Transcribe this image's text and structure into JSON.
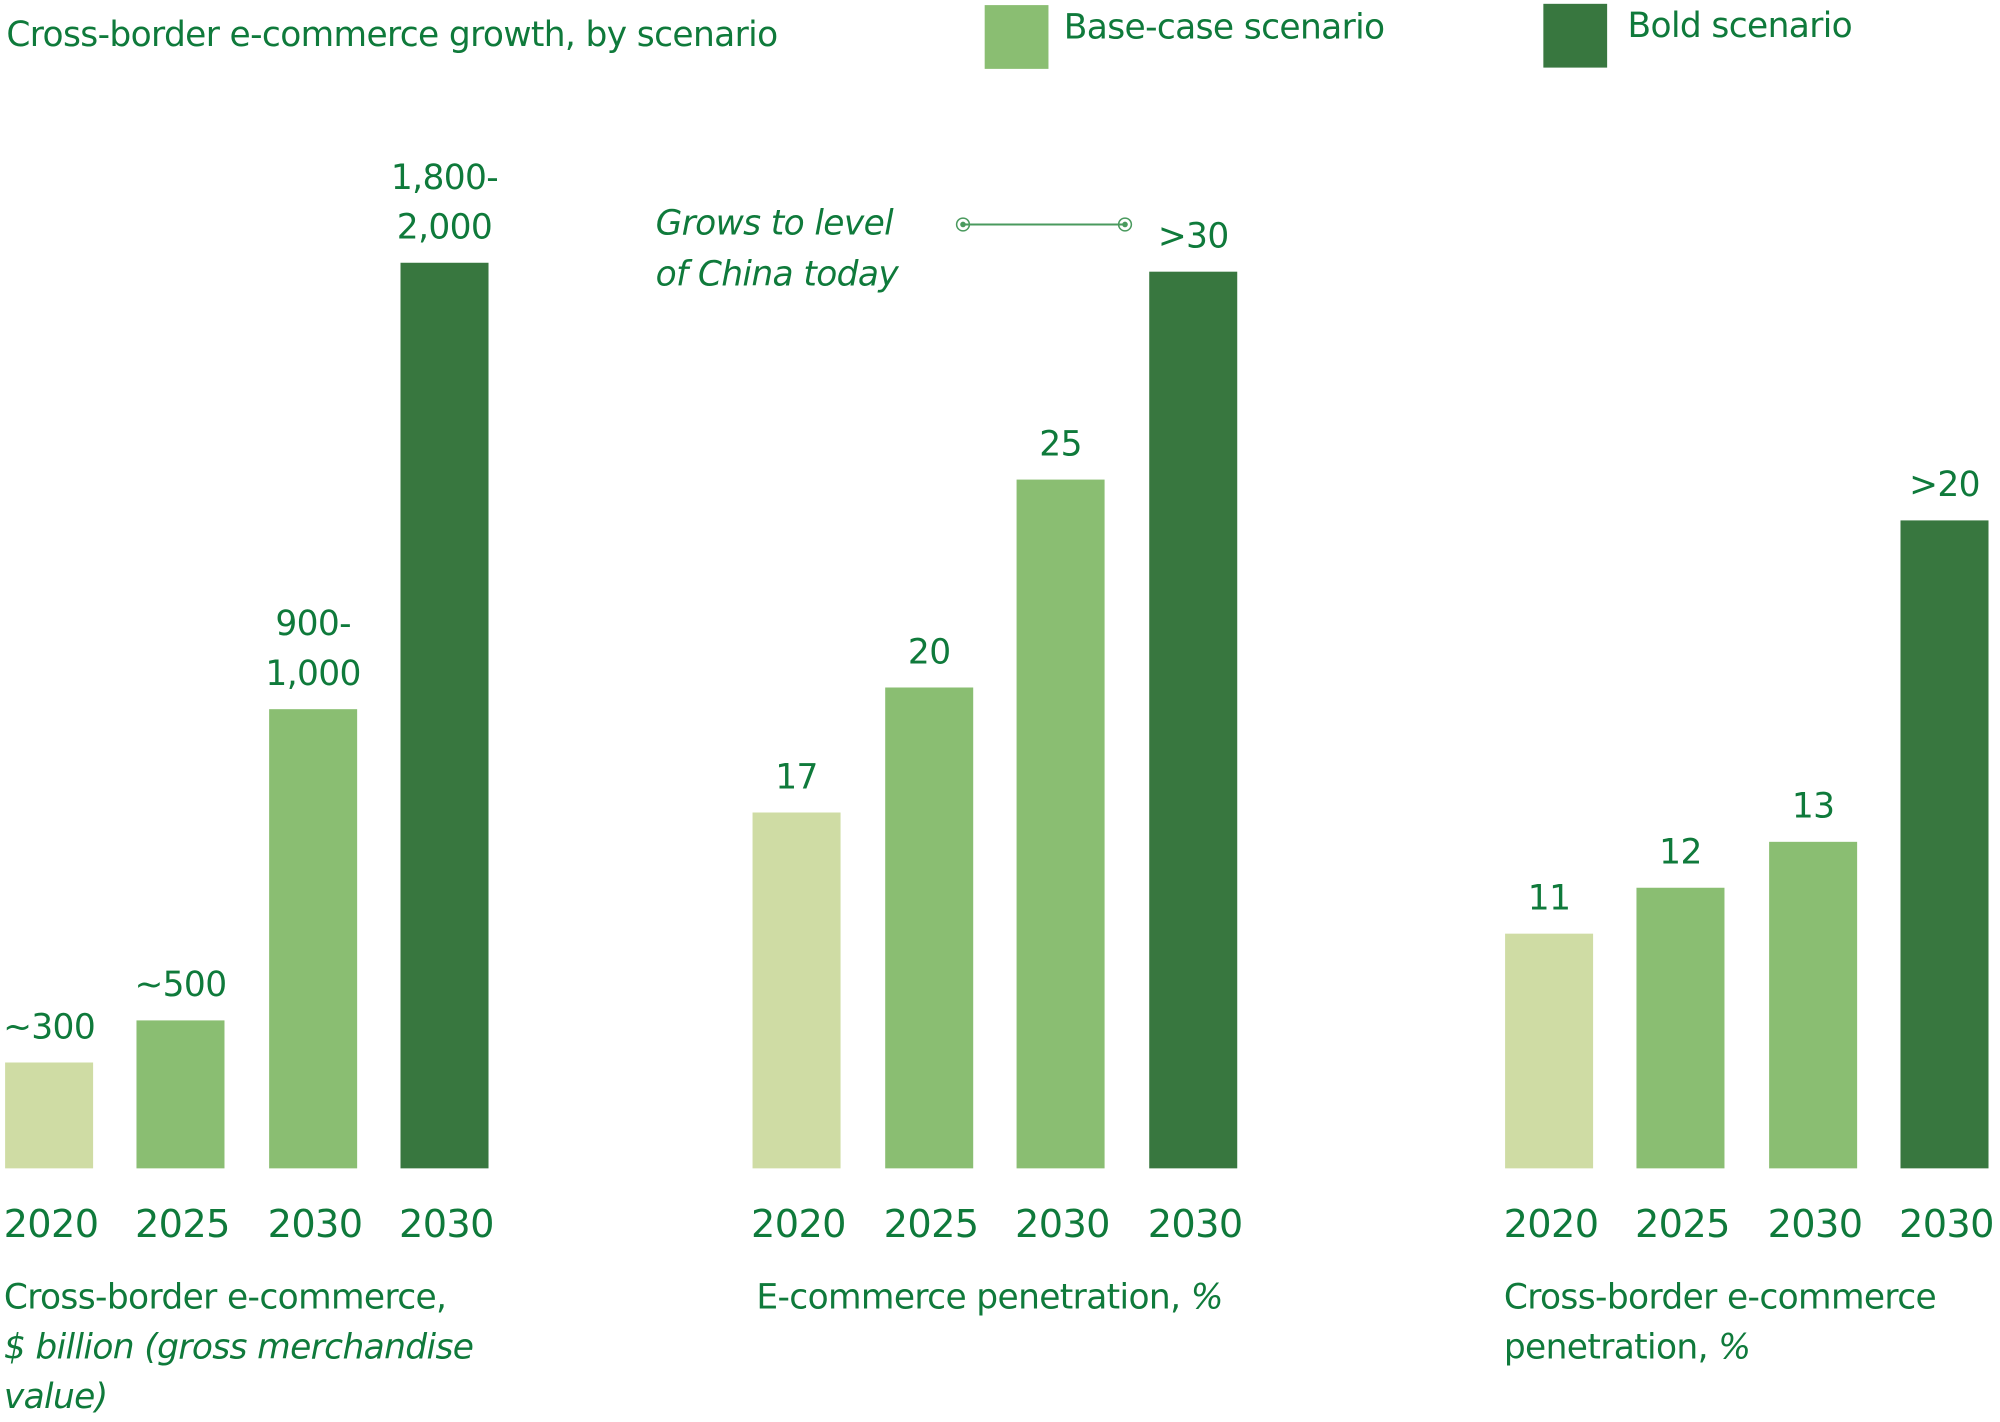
{
  "colors": {
    "text": "#0f7a3b",
    "light": "#cfdca4",
    "base": "#8abe72",
    "bold": "#38773f"
  },
  "title": "Cross-border e-commerce growth, by scenario",
  "legend": [
    {
      "label": "Base-case scenario",
      "color": "#8abe72"
    },
    {
      "label": "Bold scenario",
      "color": "#38773f"
    }
  ],
  "annotation": {
    "line1": "Grows to level",
    "line2": "of China today"
  },
  "chart_data": [
    {
      "type": "bar",
      "title": "",
      "xlabel_main": "Cross-border e-commerce,",
      "xlabel_sub": "$ billion (gross merchandise value)",
      "categories": [
        "2020",
        "2025",
        "2030",
        "2030"
      ],
      "values": [
        300,
        500,
        950,
        1900
      ],
      "labels": [
        [
          "~300"
        ],
        [
          "~500"
        ],
        [
          "900-",
          "1,000"
        ],
        [
          "1,800-",
          "2,000"
        ]
      ],
      "series_type": [
        "actual",
        "base",
        "base",
        "bold"
      ]
    },
    {
      "type": "bar",
      "xlabel_main": "E-commerce penetration,",
      "xlabel_sub": "%",
      "categories": [
        "2020",
        "2025",
        "2030",
        "2030"
      ],
      "values": [
        17,
        20,
        25,
        30
      ],
      "labels": [
        [
          "17"
        ],
        [
          "20"
        ],
        [
          "25"
        ],
        [
          ">30"
        ]
      ],
      "series_type": [
        "actual",
        "base",
        "base",
        "bold"
      ]
    },
    {
      "type": "bar",
      "xlabel_main": "Cross-border e-commerce penetration,",
      "xlabel_sub": "%",
      "categories": [
        "2020",
        "2025",
        "2030",
        "2030"
      ],
      "values": [
        11,
        12,
        13,
        20
      ],
      "labels": [
        [
          "11"
        ],
        [
          "12"
        ],
        [
          "13"
        ],
        [
          ">20"
        ]
      ],
      "series_type": [
        "actual",
        "base",
        "base",
        "bold"
      ]
    }
  ]
}
